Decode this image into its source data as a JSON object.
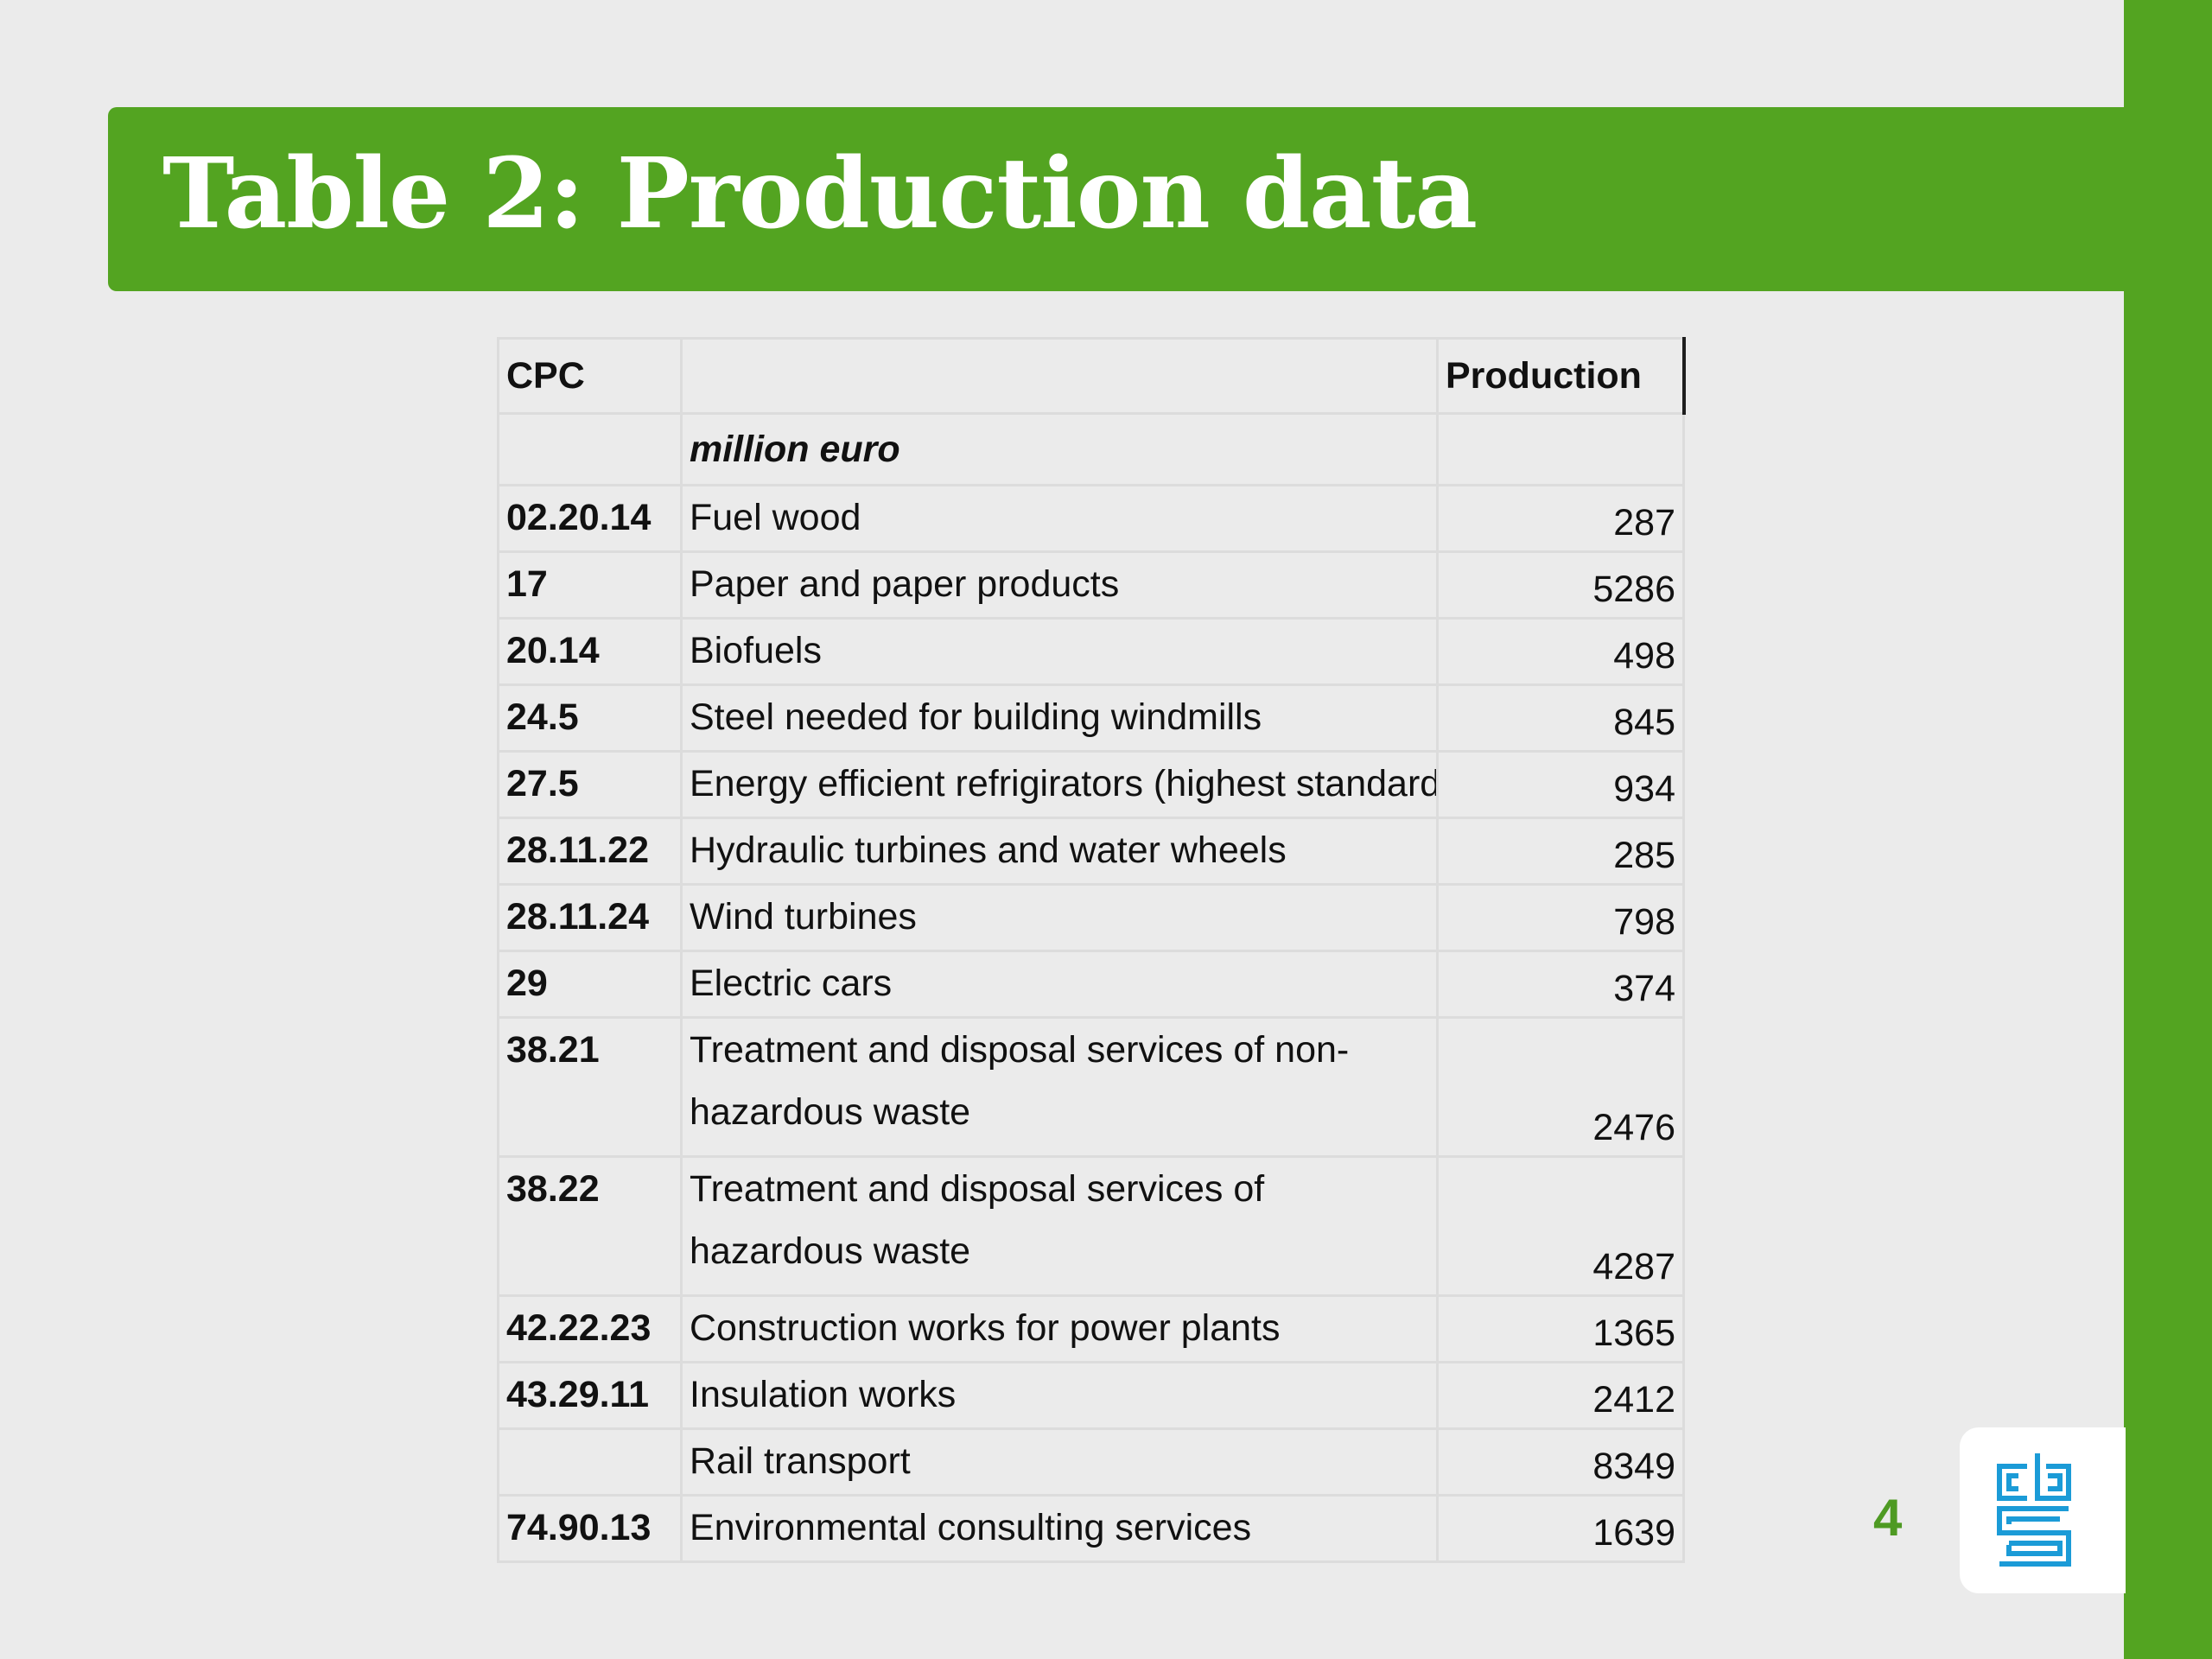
{
  "slide": {
    "title": "Table 2: Production data",
    "page_number": "4",
    "accent_color": "#53a421",
    "logo_icon": "cbs-logo-icon"
  },
  "table": {
    "headers": {
      "code": "CPC",
      "description": "",
      "production": "Production"
    },
    "unit": "million euro",
    "rows": [
      {
        "code": "02.20.14",
        "description": "Fuel wood",
        "production": "287"
      },
      {
        "code": "17",
        "description": "Paper and paper products",
        "production": "5286"
      },
      {
        "code": "20.14",
        "description": "Biofuels",
        "production": "498"
      },
      {
        "code": "24.5",
        "description": "Steel needed for building windmills",
        "production": "845"
      },
      {
        "code": "27.5",
        "description": "Energy efficient refrigirators (highest standard)",
        "production": "934"
      },
      {
        "code": "28.11.22",
        "description": "Hydraulic turbines and water wheels",
        "production": "285"
      },
      {
        "code": "28.11.24",
        "description": "Wind turbines",
        "production": "798"
      },
      {
        "code": "29",
        "description": "Electric cars",
        "production": "374"
      },
      {
        "code": "38.21",
        "description": "Treatment and disposal services of non-hazardous waste",
        "production": "2476"
      },
      {
        "code": "38.22",
        "description": "Treatment and disposal services of hazardous waste",
        "production": "4287"
      },
      {
        "code": "42.22.23",
        "description": "Construction works for power plants",
        "production": "1365"
      },
      {
        "code": "43.29.11",
        "description": "Insulation works",
        "production": "2412"
      },
      {
        "code": "",
        "description": "Rail transport",
        "production": "8349"
      },
      {
        "code": "74.90.13",
        "description": "Environmental consulting services",
        "production": "1639"
      }
    ]
  }
}
